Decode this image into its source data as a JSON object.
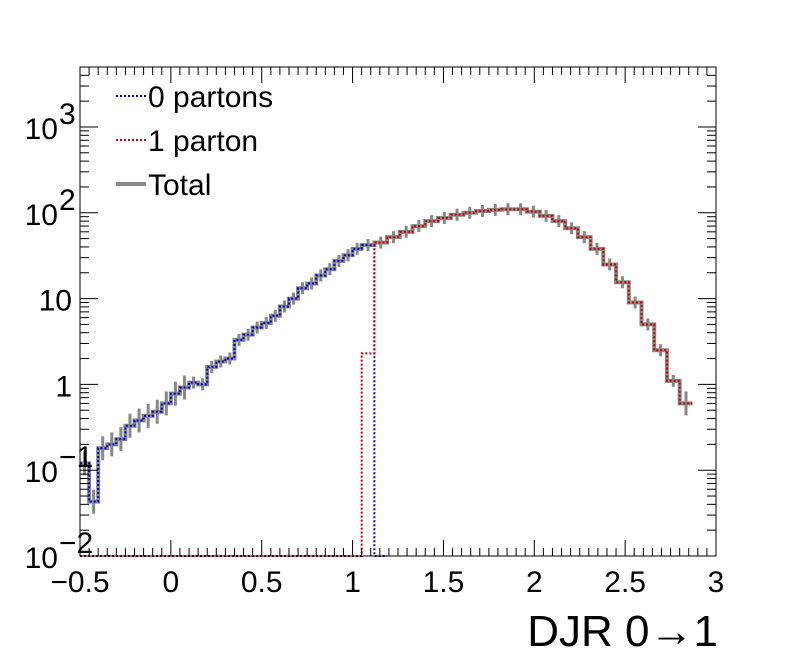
{
  "chart_data": {
    "type": "line",
    "title": "",
    "xlabel": "DJR 0→1",
    "ylabel": "",
    "xlim": [
      -0.5,
      3.0
    ],
    "ylim": [
      0.01,
      5000
    ],
    "yscale": "log",
    "grid": false,
    "legend_position": "top-left",
    "x_ticks": [
      {
        "value": -0.5,
        "label": "−0.5"
      },
      {
        "value": 0,
        "label": "0"
      },
      {
        "value": 0.5,
        "label": "0.5"
      },
      {
        "value": 1,
        "label": "1"
      },
      {
        "value": 1.5,
        "label": "1.5"
      },
      {
        "value": 2,
        "label": "2"
      },
      {
        "value": 2.5,
        "label": "2.5"
      },
      {
        "value": 3,
        "label": "3"
      }
    ],
    "y_ticks": [
      {
        "value": 0.01,
        "base": "10",
        "exp": "−2"
      },
      {
        "value": 0.1,
        "base": "10",
        "exp": "−1"
      },
      {
        "value": 1,
        "base": "1",
        "exp": ""
      },
      {
        "value": 10,
        "base": "10",
        "exp": ""
      },
      {
        "value": 100,
        "base": "10",
        "exp": "2"
      },
      {
        "value": 1000,
        "base": "10",
        "exp": "3"
      }
    ],
    "bin_width": 0.07,
    "series": [
      {
        "name": "0 partons",
        "color": "#0000cc",
        "style": "dotted",
        "bins": [
          [
            -0.5,
            0.12
          ],
          [
            -0.45,
            0.043
          ],
          [
            -0.4,
            0.18
          ],
          [
            -0.35,
            0.2
          ],
          [
            -0.3,
            0.23
          ],
          [
            -0.25,
            0.33
          ],
          [
            -0.2,
            0.38
          ],
          [
            -0.15,
            0.43
          ],
          [
            -0.1,
            0.48
          ],
          [
            -0.05,
            0.6
          ],
          [
            0.0,
            0.78
          ],
          [
            0.05,
            0.92
          ],
          [
            0.1,
            1.05
          ],
          [
            0.15,
            1.0
          ],
          [
            0.2,
            1.6
          ],
          [
            0.25,
            1.85
          ],
          [
            0.3,
            2.0
          ],
          [
            0.35,
            3.3
          ],
          [
            0.4,
            3.8
          ],
          [
            0.45,
            4.6
          ],
          [
            0.5,
            5.2
          ],
          [
            0.55,
            6.3
          ],
          [
            0.6,
            8.1
          ],
          [
            0.65,
            10.0
          ],
          [
            0.7,
            13.2
          ],
          [
            0.75,
            15.0
          ],
          [
            0.8,
            18.6
          ],
          [
            0.85,
            22.0
          ],
          [
            0.9,
            27.5
          ],
          [
            0.95,
            32.0
          ],
          [
            1.0,
            38.0
          ],
          [
            1.05,
            42.0
          ],
          [
            1.12,
            0.01
          ]
        ]
      },
      {
        "name": "1 parton",
        "color": "#cc0000",
        "style": "dotted",
        "bins": [
          [
            -0.5,
            0.01
          ],
          [
            1.05,
            2.3
          ],
          [
            1.12,
            45.0
          ],
          [
            1.19,
            52.0
          ],
          [
            1.26,
            60.0
          ],
          [
            1.33,
            70.0
          ],
          [
            1.4,
            80.0
          ],
          [
            1.47,
            87.0
          ],
          [
            1.54,
            95.0
          ],
          [
            1.61,
            100.0
          ],
          [
            1.68,
            105.0
          ],
          [
            1.75,
            108.0
          ],
          [
            1.82,
            110.0
          ],
          [
            1.89,
            110.0
          ],
          [
            1.96,
            103.0
          ],
          [
            2.03,
            92.0
          ],
          [
            2.1,
            80.0
          ],
          [
            2.17,
            66.0
          ],
          [
            2.24,
            52.0
          ],
          [
            2.31,
            38.0
          ],
          [
            2.38,
            25.0
          ],
          [
            2.45,
            15.5
          ],
          [
            2.52,
            9.0
          ],
          [
            2.59,
            5.0
          ],
          [
            2.66,
            2.5
          ],
          [
            2.73,
            1.1
          ],
          [
            2.8,
            0.6
          ]
        ]
      },
      {
        "name": "Total",
        "color": "#888888",
        "style": "solid",
        "bins": [
          [
            -0.5,
            0.12
          ],
          [
            -0.45,
            0.043
          ],
          [
            -0.4,
            0.18
          ],
          [
            -0.35,
            0.2
          ],
          [
            -0.3,
            0.23
          ],
          [
            -0.25,
            0.33
          ],
          [
            -0.2,
            0.38
          ],
          [
            -0.15,
            0.43
          ],
          [
            -0.1,
            0.48
          ],
          [
            -0.05,
            0.6
          ],
          [
            0.0,
            0.78
          ],
          [
            0.05,
            0.92
          ],
          [
            0.1,
            1.05
          ],
          [
            0.15,
            1.0
          ],
          [
            0.2,
            1.6
          ],
          [
            0.25,
            1.85
          ],
          [
            0.3,
            2.0
          ],
          [
            0.35,
            3.3
          ],
          [
            0.4,
            3.8
          ],
          [
            0.45,
            4.6
          ],
          [
            0.5,
            5.2
          ],
          [
            0.55,
            6.3
          ],
          [
            0.6,
            8.1
          ],
          [
            0.65,
            10.0
          ],
          [
            0.7,
            13.2
          ],
          [
            0.75,
            15.0
          ],
          [
            0.8,
            18.6
          ],
          [
            0.85,
            22.0
          ],
          [
            0.9,
            27.5
          ],
          [
            0.95,
            32.0
          ],
          [
            1.0,
            38.0
          ],
          [
            1.05,
            42.0
          ],
          [
            1.12,
            45.0
          ],
          [
            1.19,
            52.0
          ],
          [
            1.26,
            60.0
          ],
          [
            1.33,
            70.0
          ],
          [
            1.4,
            80.0
          ],
          [
            1.47,
            87.0
          ],
          [
            1.54,
            95.0
          ],
          [
            1.61,
            100.0
          ],
          [
            1.68,
            105.0
          ],
          [
            1.75,
            108.0
          ],
          [
            1.82,
            110.0
          ],
          [
            1.89,
            110.0
          ],
          [
            1.96,
            103.0
          ],
          [
            2.03,
            92.0
          ],
          [
            2.1,
            80.0
          ],
          [
            2.17,
            66.0
          ],
          [
            2.24,
            52.0
          ],
          [
            2.31,
            38.0
          ],
          [
            2.38,
            25.0
          ],
          [
            2.45,
            15.5
          ],
          [
            2.52,
            9.0
          ],
          [
            2.59,
            5.0
          ],
          [
            2.66,
            2.5
          ],
          [
            2.73,
            1.1
          ],
          [
            2.8,
            0.6
          ]
        ]
      }
    ]
  }
}
